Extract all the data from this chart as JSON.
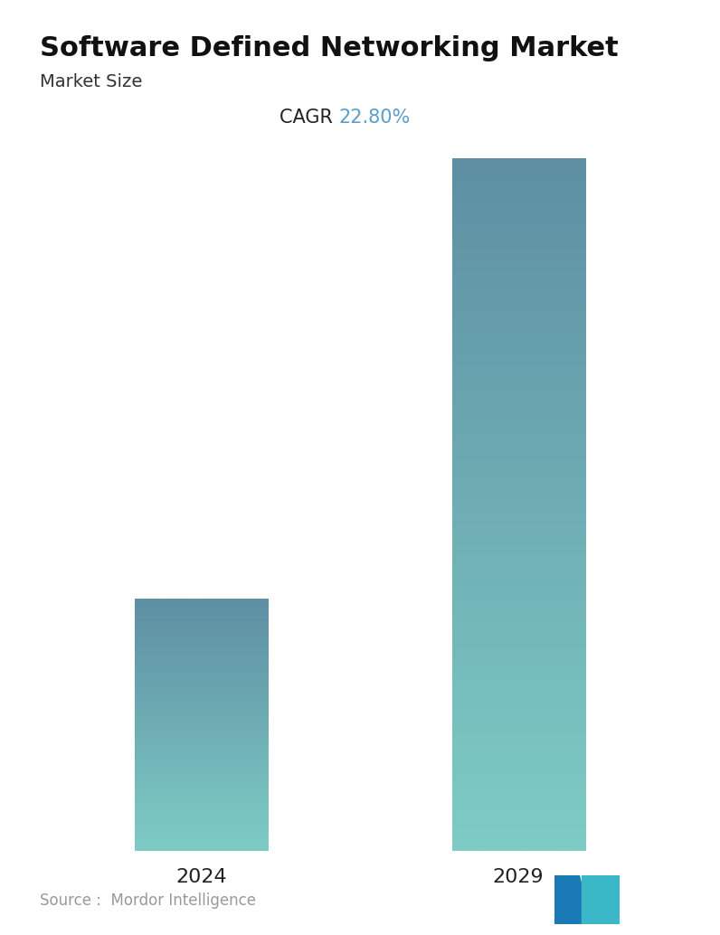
{
  "title": "Software Defined Networking Market",
  "subtitle": "Market Size",
  "cagr_label": "CAGR ",
  "cagr_value": "22.80%",
  "cagr_color": "#5b9ec9",
  "categories": [
    "2024",
    "2029"
  ],
  "values": [
    1.0,
    2.75
  ],
  "bar_top_color": "#5e8fa3",
  "bar_bottom_color": "#7eccc5",
  "title_fontsize": 22,
  "subtitle_fontsize": 14,
  "cagr_fontsize": 15,
  "tick_fontsize": 16,
  "source_text": "Source :  Mordor Intelligence",
  "source_color": "#999999",
  "source_fontsize": 12,
  "background_color": "#ffffff",
  "bar_width": 0.42,
  "logo_left_color": "#1a7ab5",
  "logo_right_color": "#3ab8c8"
}
